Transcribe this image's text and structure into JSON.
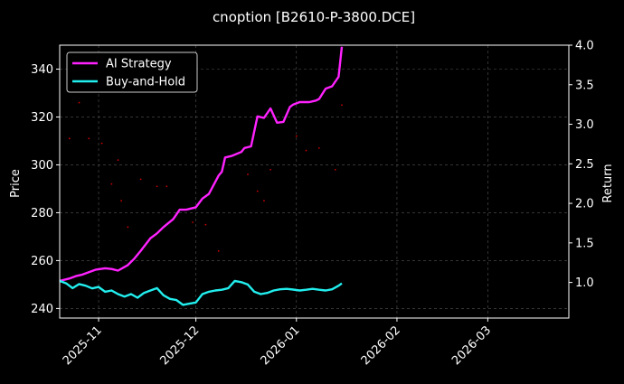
{
  "chart_data": {
    "type": "line",
    "title": "cnoption [B2610-P-3800.DCE]",
    "ylabel": "Price",
    "y2label": "Return",
    "xlim": [
      "2025-10-20",
      "2026-03-26"
    ],
    "ylim": [
      236,
      350
    ],
    "y2lim": [
      0.55,
      4.0
    ],
    "x_ticks": [
      "2025-11-01",
      "2025-12-01",
      "2026-01-01",
      "2026-02-01",
      "2026-03-01"
    ],
    "x_tick_labels": [
      "2025-11",
      "2025-12",
      "2026-01",
      "2026-02",
      "2026-03"
    ],
    "y_ticks": [
      240,
      260,
      280,
      300,
      320,
      340
    ],
    "y2_ticks": [
      1.0,
      1.5,
      2.0,
      2.5,
      3.0,
      3.5,
      4.0
    ],
    "grid": true,
    "legend_position": "top-left",
    "series": [
      {
        "name": "AI Strategy",
        "axis": "right",
        "color": "#ff22ff",
        "x": [
          "2025-10-20",
          "2025-10-23",
          "2025-10-25",
          "2025-10-27",
          "2025-10-29",
          "2025-10-31",
          "2025-11-03",
          "2025-11-05",
          "2025-11-07",
          "2025-11-10",
          "2025-11-12",
          "2025-11-14",
          "2025-11-17",
          "2025-11-19",
          "2025-11-21",
          "2025-11-24",
          "2025-11-26",
          "2025-11-28",
          "2025-12-01",
          "2025-12-03",
          "2025-12-05",
          "2025-12-08",
          "2025-12-09",
          "2025-12-10",
          "2025-12-12",
          "2025-12-15",
          "2025-12-16",
          "2025-12-18",
          "2025-12-20",
          "2025-12-22",
          "2025-12-24",
          "2025-12-26",
          "2025-12-28",
          "2025-12-30",
          "2025-12-31",
          "2026-01-02",
          "2026-01-05",
          "2026-01-07",
          "2026-01-08",
          "2026-01-10",
          "2026-01-12",
          "2026-01-14",
          "2026-01-15"
        ],
        "values": [
          1.02,
          1.05,
          1.08,
          1.1,
          1.13,
          1.16,
          1.18,
          1.17,
          1.15,
          1.22,
          1.3,
          1.4,
          1.56,
          1.62,
          1.7,
          1.8,
          1.92,
          1.92,
          1.95,
          2.06,
          2.12,
          2.35,
          2.4,
          2.58,
          2.6,
          2.65,
          2.7,
          2.72,
          3.1,
          3.08,
          3.2,
          3.02,
          3.03,
          3.22,
          3.25,
          3.28,
          3.28,
          3.3,
          3.32,
          3.45,
          3.48,
          3.6,
          3.98
        ]
      },
      {
        "name": "Buy-and-Hold",
        "axis": "left",
        "color": "#22eeee",
        "x": [
          "2025-10-20",
          "2025-10-22",
          "2025-10-24",
          "2025-10-26",
          "2025-10-28",
          "2025-10-30",
          "2025-11-01",
          "2025-11-03",
          "2025-11-05",
          "2025-11-07",
          "2025-11-09",
          "2025-11-11",
          "2025-11-13",
          "2025-11-15",
          "2025-11-17",
          "2025-11-19",
          "2025-11-21",
          "2025-11-23",
          "2025-11-25",
          "2025-11-27",
          "2025-11-29",
          "2025-12-01",
          "2025-12-03",
          "2025-12-05",
          "2025-12-07",
          "2025-12-09",
          "2025-12-11",
          "2025-12-13",
          "2025-12-15",
          "2025-12-17",
          "2025-12-19",
          "2025-12-21",
          "2025-12-23",
          "2025-12-25",
          "2025-12-27",
          "2025-12-29",
          "2025-12-31",
          "2026-01-02",
          "2026-01-04",
          "2026-01-06",
          "2026-01-08",
          "2026-01-10",
          "2026-01-12",
          "2026-01-14",
          "2026-01-15"
        ],
        "values": [
          251.5,
          250.5,
          248.5,
          250.2,
          249.5,
          248.4,
          249.0,
          247.0,
          247.5,
          246.0,
          245.0,
          246.0,
          244.5,
          246.5,
          247.5,
          248.5,
          245.5,
          244.0,
          243.5,
          241.5,
          242.0,
          242.5,
          246.0,
          247.0,
          247.5,
          247.8,
          248.5,
          251.5,
          251.0,
          250.0,
          247.0,
          246.0,
          246.5,
          247.5,
          248.0,
          248.2,
          247.9,
          247.5,
          247.8,
          248.2,
          247.8,
          247.5,
          248.0,
          249.5,
          250.5
        ]
      }
    ],
    "scatter_marks": {
      "name": "trade-dot",
      "color": "#cc0000",
      "points": [
        [
          "2025-10-23",
          311
        ],
        [
          "2025-10-26",
          326
        ],
        [
          "2025-10-29",
          311
        ],
        [
          "2025-11-02",
          309
        ],
        [
          "2025-11-05",
          292
        ],
        [
          "2025-11-07",
          302
        ],
        [
          "2025-11-08",
          285
        ],
        [
          "2025-11-10",
          274
        ],
        [
          "2025-11-14",
          294
        ],
        [
          "2025-11-19",
          291
        ],
        [
          "2025-11-22",
          291
        ],
        [
          "2025-11-30",
          276
        ],
        [
          "2025-12-04",
          275
        ],
        [
          "2025-12-08",
          264
        ],
        [
          "2025-12-17",
          296
        ],
        [
          "2025-12-20",
          289
        ],
        [
          "2025-12-22",
          285
        ],
        [
          "2025-12-24",
          298
        ],
        [
          "2026-01-01",
          312
        ],
        [
          "2026-01-04",
          306
        ],
        [
          "2026-01-08",
          307
        ],
        [
          "2026-01-13",
          298
        ],
        [
          "2026-01-15",
          325
        ]
      ]
    }
  },
  "legend": {
    "items": [
      {
        "label": "AI Strategy",
        "color": "#ff22ff"
      },
      {
        "label": "Buy-and-Hold",
        "color": "#22eeee"
      }
    ]
  }
}
